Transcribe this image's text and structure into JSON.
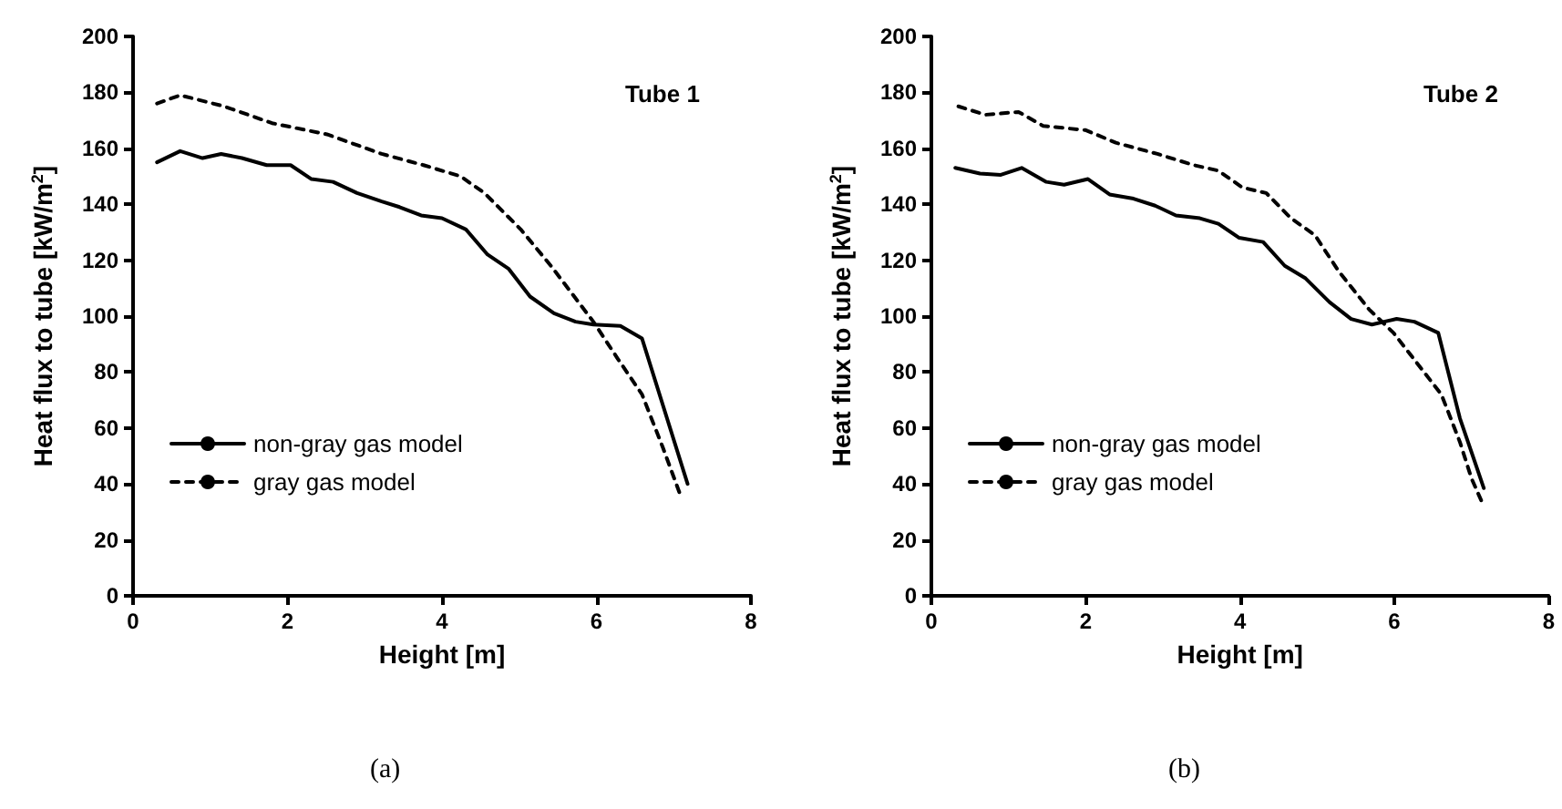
{
  "chart_data": [
    {
      "type": "line",
      "xlabel": "Height [m]",
      "ylabel": "Heat flux to tube [kW/m$^{2}$]",
      "annotations": [
        "Tube 1",
        "(a)"
      ],
      "xlim": [
        0,
        8
      ],
      "xticks": [
        0,
        2,
        4,
        6,
        8
      ],
      "ylim": [
        0,
        200
      ],
      "yticks": [
        0,
        20,
        40,
        60,
        80,
        100,
        120,
        140,
        160,
        180,
        200
      ],
      "grid": false,
      "legend": "bottom left",
      "marker": "none",
      "series": [
        {
          "name": "non-gray gas model",
          "color": "#000000",
          "line_style": "solid",
          "x": [
            0.31,
            0.61,
            0.9,
            1.14,
            1.41,
            1.73,
            2.04,
            2.31,
            2.59,
            2.9,
            3.22,
            3.45,
            3.73,
            4.0,
            4.31,
            4.59,
            4.86,
            5.14,
            5.45,
            5.73,
            5.96,
            6.31,
            6.59,
            7.18
          ],
          "values": [
            155,
            159,
            156.5,
            158,
            156.5,
            154,
            154,
            149,
            148,
            144,
            141,
            139,
            136,
            135,
            131,
            122,
            117,
            107,
            101,
            98,
            97,
            96.5,
            92,
            40
          ]
        },
        {
          "name": "gray gas model",
          "color": "#000000",
          "line_style": "dashed",
          "x": [
            0.31,
            0.61,
            1.18,
            1.8,
            2.51,
            3.22,
            3.76,
            4.24,
            4.55,
            5.02,
            5.41,
            5.96,
            6.27,
            6.59,
            6.86,
            7.1
          ],
          "values": [
            176,
            179,
            175,
            169,
            165,
            158,
            154,
            150,
            144,
            131,
            118,
            98,
            85,
            72,
            53,
            35
          ]
        }
      ]
    },
    {
      "type": "line",
      "xlabel": "Height [m]",
      "ylabel": "Heat flux to tube [kW/m$^{2}$]",
      "annotations": [
        "Tube 2",
        "(b)"
      ],
      "xlim": [
        0,
        8
      ],
      "xticks": [
        0,
        2,
        4,
        6,
        8
      ],
      "ylim": [
        0,
        200
      ],
      "yticks": [
        0,
        20,
        40,
        60,
        80,
        100,
        120,
        140,
        160,
        180,
        200
      ],
      "grid": false,
      "legend": "bottom left",
      "marker": "none",
      "series": [
        {
          "name": "non-gray gas model",
          "color": "#000000",
          "line_style": "solid",
          "x": [
            0.31,
            0.63,
            0.9,
            1.17,
            1.49,
            1.72,
            2.03,
            2.31,
            2.62,
            2.9,
            3.17,
            3.48,
            3.72,
            3.99,
            4.3,
            4.58,
            4.85,
            5.16,
            5.44,
            5.71,
            6.03,
            6.26,
            6.57,
            6.85,
            7.16
          ],
          "values": [
            153,
            151,
            150.5,
            153,
            148,
            147,
            149,
            143.5,
            142,
            139.5,
            136,
            135,
            133,
            128,
            126.5,
            118,
            113.5,
            105,
            99,
            97,
            99,
            98,
            94,
            63.5,
            38.5
          ]
        },
        {
          "name": "gray gas model",
          "color": "#000000",
          "line_style": "dashed",
          "x": [
            0.35,
            0.7,
            1.13,
            1.45,
            2.0,
            2.39,
            2.93,
            3.4,
            3.72,
            4.03,
            4.34,
            4.66,
            4.97,
            5.28,
            5.67,
            5.99,
            6.3,
            6.61,
            6.85,
            7.0,
            7.16
          ],
          "values": [
            175,
            172,
            173,
            168,
            166.5,
            162,
            158,
            154,
            152,
            146,
            144,
            135,
            129,
            116,
            102.5,
            94,
            83,
            72,
            55,
            42,
            32
          ]
        }
      ]
    }
  ]
}
